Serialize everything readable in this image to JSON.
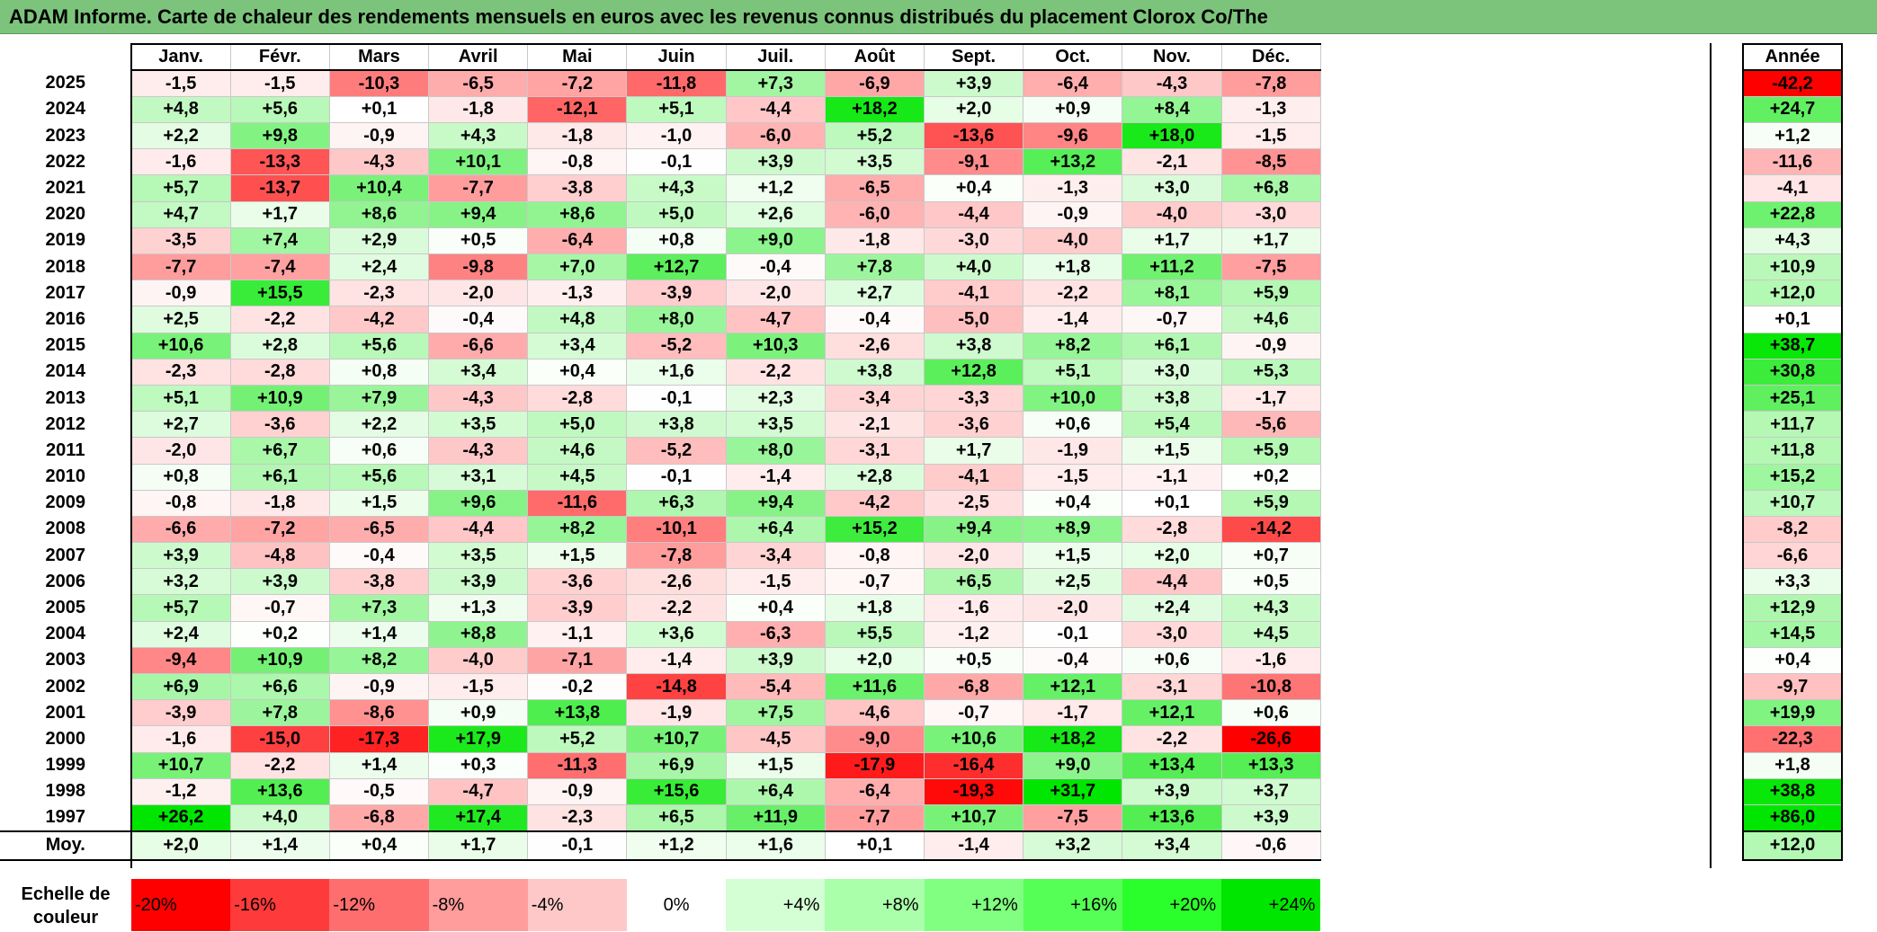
{
  "title": "ADAM Informe. Carte de chaleur des rendements mensuels en euros avec les revenus connus distribués du placement Clorox Co/The",
  "chart_data": {
    "type": "heatmap",
    "title": "ADAM Informe. Carte de chaleur des rendements mensuels en euros avec les revenus connus distribués du placement Clorox Co/The",
    "months": [
      "Janv.",
      "Févr.",
      "Mars",
      "Avril",
      "Mai",
      "Juin",
      "Juil.",
      "Août",
      "Sept.",
      "Oct.",
      "Nov.",
      "Déc."
    ],
    "annual_label": "Année",
    "average_label": "Moy.",
    "rows": [
      {
        "year": "2025",
        "values": [
          "-1,5",
          "-1,5",
          "-10,3",
          "-6,5",
          "-7,2",
          "-11,8",
          "+7,3",
          "-6,9",
          "+3,9",
          "-6,4",
          "-4,3",
          "-7,8"
        ],
        "annual": "-42,2"
      },
      {
        "year": "2024",
        "values": [
          "+4,8",
          "+5,6",
          "+0,1",
          "-1,8",
          "-12,1",
          "+5,1",
          "-4,4",
          "+18,2",
          "+2,0",
          "+0,9",
          "+8,4",
          "-1,3"
        ],
        "annual": "+24,7"
      },
      {
        "year": "2023",
        "values": [
          "+2,2",
          "+9,8",
          "-0,9",
          "+4,3",
          "-1,8",
          "-1,0",
          "-6,0",
          "+5,2",
          "-13,6",
          "-9,6",
          "+18,0",
          "-1,5"
        ],
        "annual": "+1,2"
      },
      {
        "year": "2022",
        "values": [
          "-1,6",
          "-13,3",
          "-4,3",
          "+10,1",
          "-0,8",
          "-0,1",
          "+3,9",
          "+3,5",
          "-9,1",
          "+13,2",
          "-2,1",
          "-8,5"
        ],
        "annual": "-11,6"
      },
      {
        "year": "2021",
        "values": [
          "+5,7",
          "-13,7",
          "+10,4",
          "-7,7",
          "-3,8",
          "+4,3",
          "+1,2",
          "-6,5",
          "+0,4",
          "-1,3",
          "+3,0",
          "+6,8"
        ],
        "annual": "-4,1"
      },
      {
        "year": "2020",
        "values": [
          "+4,7",
          "+1,7",
          "+8,6",
          "+9,4",
          "+8,6",
          "+5,0",
          "+2,6",
          "-6,0",
          "-4,4",
          "-0,9",
          "-4,0",
          "-3,0"
        ],
        "annual": "+22,8"
      },
      {
        "year": "2019",
        "values": [
          "-3,5",
          "+7,4",
          "+2,9",
          "+0,5",
          "-6,4",
          "+0,8",
          "+9,0",
          "-1,8",
          "-3,0",
          "-4,0",
          "+1,7",
          "+1,7"
        ],
        "annual": "+4,3"
      },
      {
        "year": "2018",
        "values": [
          "-7,7",
          "-7,4",
          "+2,4",
          "-9,8",
          "+7,0",
          "+12,7",
          "-0,4",
          "+7,8",
          "+4,0",
          "+1,8",
          "+11,2",
          "-7,5"
        ],
        "annual": "+10,9"
      },
      {
        "year": "2017",
        "values": [
          "-0,9",
          "+15,5",
          "-2,3",
          "-2,0",
          "-1,3",
          "-3,9",
          "-2,0",
          "+2,7",
          "-4,1",
          "-2,2",
          "+8,1",
          "+5,9"
        ],
        "annual": "+12,0"
      },
      {
        "year": "2016",
        "values": [
          "+2,5",
          "-2,2",
          "-4,2",
          "-0,4",
          "+4,8",
          "+8,0",
          "-4,7",
          "-0,4",
          "-5,0",
          "-1,4",
          "-0,7",
          "+4,6"
        ],
        "annual": "+0,1"
      },
      {
        "year": "2015",
        "values": [
          "+10,6",
          "+2,8",
          "+5,6",
          "-6,6",
          "+3,4",
          "-5,2",
          "+10,3",
          "-2,6",
          "+3,8",
          "+8,2",
          "+6,1",
          "-0,9"
        ],
        "annual": "+38,7"
      },
      {
        "year": "2014",
        "values": [
          "-2,3",
          "-2,8",
          "+0,8",
          "+3,4",
          "+0,4",
          "+1,6",
          "-2,2",
          "+3,8",
          "+12,8",
          "+5,1",
          "+3,0",
          "+5,3"
        ],
        "annual": "+30,8"
      },
      {
        "year": "2013",
        "values": [
          "+5,1",
          "+10,9",
          "+7,9",
          "-4,3",
          "-2,8",
          "-0,1",
          "+2,3",
          "-3,4",
          "-3,3",
          "+10,0",
          "+3,8",
          "-1,7"
        ],
        "annual": "+25,1"
      },
      {
        "year": "2012",
        "values": [
          "+2,7",
          "-3,6",
          "+2,2",
          "+3,5",
          "+5,0",
          "+3,8",
          "+3,5",
          "-2,1",
          "-3,6",
          "+0,6",
          "+5,4",
          "-5,6"
        ],
        "annual": "+11,7"
      },
      {
        "year": "2011",
        "values": [
          "-2,0",
          "+6,7",
          "+0,6",
          "-4,3",
          "+4,6",
          "-5,2",
          "+8,0",
          "-3,1",
          "+1,7",
          "-1,9",
          "+1,5",
          "+5,9"
        ],
        "annual": "+11,8"
      },
      {
        "year": "2010",
        "values": [
          "+0,8",
          "+6,1",
          "+5,6",
          "+3,1",
          "+4,5",
          "-0,1",
          "-1,4",
          "+2,8",
          "-4,1",
          "-1,5",
          "-1,1",
          "+0,2"
        ],
        "annual": "+15,2"
      },
      {
        "year": "2009",
        "values": [
          "-0,8",
          "-1,8",
          "+1,5",
          "+9,6",
          "-11,6",
          "+6,3",
          "+9,4",
          "-4,2",
          "-2,5",
          "+0,4",
          "+0,1",
          "+5,9"
        ],
        "annual": "+10,7"
      },
      {
        "year": "2008",
        "values": [
          "-6,6",
          "-7,2",
          "-6,5",
          "-4,4",
          "+8,2",
          "-10,1",
          "+6,4",
          "+15,2",
          "+9,4",
          "+8,9",
          "-2,8",
          "-14,2"
        ],
        "annual": "-8,2"
      },
      {
        "year": "2007",
        "values": [
          "+3,9",
          "-4,8",
          "-0,4",
          "+3,5",
          "+1,5",
          "-7,8",
          "-3,4",
          "-0,8",
          "-2,0",
          "+1,5",
          "+2,0",
          "+0,7"
        ],
        "annual": "-6,6"
      },
      {
        "year": "2006",
        "values": [
          "+3,2",
          "+3,9",
          "-3,8",
          "+3,9",
          "-3,6",
          "-2,6",
          "-1,5",
          "-0,7",
          "+6,5",
          "+2,5",
          "-4,4",
          "+0,5"
        ],
        "annual": "+3,3"
      },
      {
        "year": "2005",
        "values": [
          "+5,7",
          "-0,7",
          "+7,3",
          "+1,3",
          "-3,9",
          "-2,2",
          "+0,4",
          "+1,8",
          "-1,6",
          "-2,0",
          "+2,4",
          "+4,3"
        ],
        "annual": "+12,9"
      },
      {
        "year": "2004",
        "values": [
          "+2,4",
          "+0,2",
          "+1,4",
          "+8,8",
          "-1,1",
          "+3,6",
          "-6,3",
          "+5,5",
          "-1,2",
          "-0,1",
          "-3,0",
          "+4,5"
        ],
        "annual": "+14,5"
      },
      {
        "year": "2003",
        "values": [
          "-9,4",
          "+10,9",
          "+8,2",
          "-4,0",
          "-7,1",
          "-1,4",
          "+3,9",
          "+2,0",
          "+0,5",
          "-0,4",
          "+0,6",
          "-1,6"
        ],
        "annual": "+0,4"
      },
      {
        "year": "2002",
        "values": [
          "+6,9",
          "+6,6",
          "-0,9",
          "-1,5",
          "-0,2",
          "-14,8",
          "-5,4",
          "+11,6",
          "-6,8",
          "+12,1",
          "-3,1",
          "-10,8"
        ],
        "annual": "-9,7"
      },
      {
        "year": "2001",
        "values": [
          "-3,9",
          "+7,8",
          "-8,6",
          "+0,9",
          "+13,8",
          "-1,9",
          "+7,5",
          "-4,6",
          "-0,7",
          "-1,7",
          "+12,1",
          "+0,6"
        ],
        "annual": "+19,9"
      },
      {
        "year": "2000",
        "values": [
          "-1,6",
          "-15,0",
          "-17,3",
          "+17,9",
          "+5,2",
          "+10,7",
          "-4,5",
          "-9,0",
          "+10,6",
          "+18,2",
          "-2,2",
          "-26,6"
        ],
        "annual": "-22,3"
      },
      {
        "year": "1999",
        "values": [
          "+10,7",
          "-2,2",
          "+1,4",
          "+0,3",
          "-11,3",
          "+6,9",
          "+1,5",
          "-17,9",
          "-16,4",
          "+9,0",
          "+13,4",
          "+13,3"
        ],
        "annual": "+1,8"
      },
      {
        "year": "1998",
        "values": [
          "-1,2",
          "+13,6",
          "-0,5",
          "-4,7",
          "-0,9",
          "+15,6",
          "+6,4",
          "-6,4",
          "-19,3",
          "+31,7",
          "+3,9",
          "+3,7"
        ],
        "annual": "+38,8"
      },
      {
        "year": "1997",
        "values": [
          "+26,2",
          "+4,0",
          "-6,8",
          "+17,4",
          "-2,3",
          "+6,5",
          "+11,9",
          "-7,7",
          "+10,7",
          "-7,5",
          "+13,6",
          "+3,9"
        ],
        "annual": "+86,0"
      }
    ],
    "averages": [
      "+2,0",
      "+1,4",
      "+0,4",
      "+1,7",
      "-0,1",
      "+1,2",
      "+1,6",
      "+0,1",
      "-1,4",
      "+3,2",
      "+3,4",
      "-0,6"
    ],
    "average_annual": "+12,0",
    "color_scale": {
      "label": "Echelle de couleur",
      "steps": [
        "-20%",
        "-16%",
        "-12%",
        "-8%",
        "-4%",
        "0%",
        "+4%",
        "+8%",
        "+12%",
        "+16%",
        "+20%",
        "+24%"
      ],
      "colors": [
        "#ff0000",
        "#ff3a3a",
        "#ff6e6e",
        "#ff9c9c",
        "#ffc8c8",
        "#ffffff",
        "#d4ffd4",
        "#aaffaa",
        "#80ff80",
        "#55ff55",
        "#2bff2b",
        "#00e600"
      ]
    }
  }
}
